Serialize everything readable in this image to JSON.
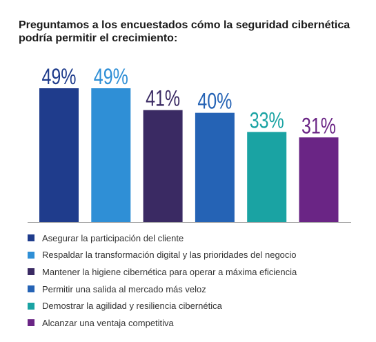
{
  "chart_data": {
    "type": "bar",
    "title": "Preguntamos a los encuestados cómo la seguridad cibernética podría permitir el crecimiento:",
    "categories": [
      "Asegurar la participación del cliente",
      "Respaldar la transformación digital y las prioridades del negocio",
      "Mantener la higiene cibernética para operar a máxima eficiencia",
      "Permitir una salida al mercado más veloz",
      "Demostrar la agilidad y resiliencia cibernética",
      "Alcanzar una ventaja competitiva"
    ],
    "values": [
      49,
      49,
      41,
      40,
      33,
      31
    ],
    "data_labels": [
      "49%",
      "49%",
      "41%",
      "40%",
      "33%",
      "31%"
    ],
    "colors": [
      "#1f3c8c",
      "#2f8fd6",
      "#3a2a63",
      "#2563b5",
      "#1aa3a3",
      "#6a2585"
    ],
    "ylim": [
      0,
      49
    ],
    "grid": false,
    "legend_position": "bottom"
  }
}
